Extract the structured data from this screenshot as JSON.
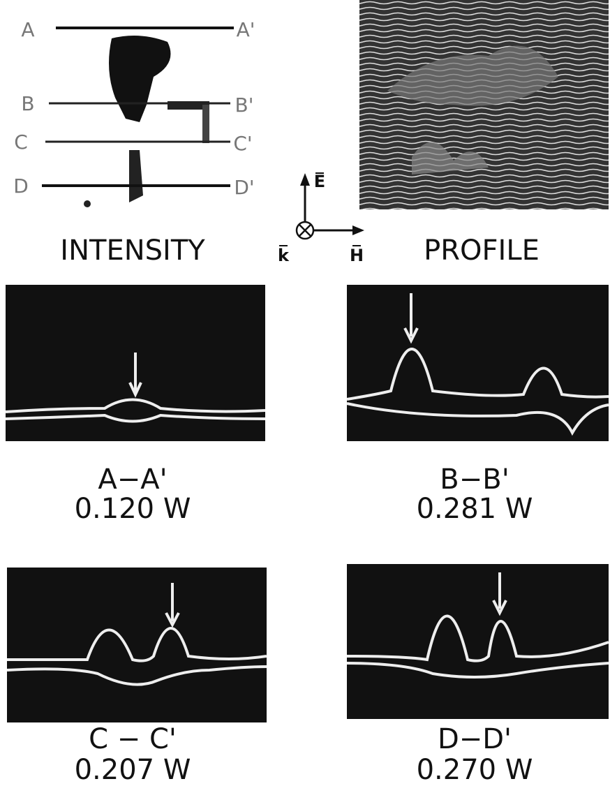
{
  "intensity_panel": {
    "label": "INTENSITY",
    "lines": [
      {
        "left": "A",
        "right": "A'"
      },
      {
        "left": "B",
        "right": "B'"
      },
      {
        "left": "C",
        "right": "C'"
      },
      {
        "left": "D",
        "right": "D'"
      }
    ]
  },
  "profile_panel": {
    "label": "PROFILE"
  },
  "axes": {
    "e": "E",
    "k": "k",
    "h": "H"
  },
  "traces": [
    {
      "cut": "A−A'",
      "power": "0.120 W"
    },
    {
      "cut": "B−B'",
      "power": "0.281 W"
    },
    {
      "cut": "C − C'",
      "power": "0.207 W"
    },
    {
      "cut": "D−D'",
      "power": "0.270 W"
    }
  ]
}
